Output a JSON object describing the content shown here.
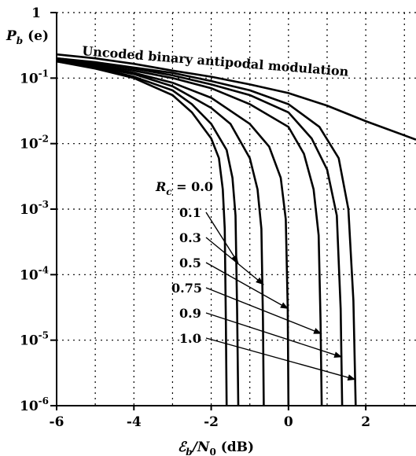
{
  "chart_data": {
    "type": "line",
    "ylabel": "P_b (e)",
    "xlabel": "ℰ_b/N_0 (dB)",
    "xlim": [
      -6,
      3.3
    ],
    "ylim": [
      1e-06,
      1
    ],
    "yscale": "log",
    "grid": true,
    "x_ticks": [
      -6,
      -4,
      -2,
      0,
      2
    ],
    "x_tick_labels": [
      "-6",
      "-4",
      "-2",
      "0",
      "2"
    ],
    "y_ticks": [
      1,
      0.1,
      0.01,
      0.001,
      0.0001,
      1e-05,
      1e-06
    ],
    "y_tick_labels": [
      "1",
      "10-1",
      "10-2",
      "10-3",
      "10-4",
      "10-5",
      "10-6"
    ],
    "annotations": {
      "uncoded": "Uncoded binary antipodal modulation",
      "rc_prefix": "R",
      "rc_sub": "c",
      "rc_value": " = 0.0",
      "rates": [
        "0.1",
        "0.3",
        "0.5",
        "0.75",
        "0.9",
        "1.0"
      ]
    },
    "series": [
      {
        "label_key": "uncoded",
        "x": [
          -6,
          -5,
          -4,
          -3,
          -2,
          -1,
          0,
          1,
          2,
          3.3
        ],
        "y": [
          0.23,
          0.2,
          0.165,
          0.13,
          0.105,
          0.08,
          0.059,
          0.038,
          0.022,
          0.0115
        ]
      },
      {
        "rate": 0.0,
        "x": [
          -6,
          -5,
          -4,
          -3,
          -2.5,
          -2,
          -1.8,
          -1.7,
          -1.65,
          -1.62,
          -1.6
        ],
        "y": [
          0.18,
          0.14,
          0.1,
          0.055,
          0.03,
          0.012,
          0.006,
          0.002,
          0.0005,
          2e-05,
          1e-06
        ]
      },
      {
        "rate": 0.1,
        "x": [
          -6,
          -5,
          -4,
          -3,
          -2.5,
          -2,
          -1.6,
          -1.45,
          -1.37,
          -1.33,
          -1.3
        ],
        "y": [
          0.18,
          0.145,
          0.105,
          0.065,
          0.04,
          0.02,
          0.008,
          0.003,
          0.0008,
          3e-05,
          1e-06
        ]
      },
      {
        "rate": 0.3,
        "x": [
          -6,
          -5,
          -4,
          -3,
          -2,
          -1.5,
          -1.0,
          -0.8,
          -0.7,
          -0.66,
          -0.64
        ],
        "y": [
          0.19,
          0.15,
          0.115,
          0.075,
          0.035,
          0.02,
          0.006,
          0.002,
          0.0005,
          2e-05,
          1e-06
        ]
      },
      {
        "rate": 0.5,
        "x": [
          -6,
          -5,
          -4,
          -3,
          -2,
          -1,
          -0.5,
          -0.2,
          -0.07,
          -0.02,
          0
        ],
        "y": [
          0.19,
          0.155,
          0.12,
          0.085,
          0.05,
          0.02,
          0.009,
          0.003,
          0.0007,
          3e-05,
          1e-06
        ]
      },
      {
        "rate": 0.75,
        "x": [
          -6,
          -5,
          -4,
          -3,
          -2,
          -1,
          0,
          0.4,
          0.65,
          0.78,
          0.83,
          0.86
        ],
        "y": [
          0.19,
          0.16,
          0.13,
          0.1,
          0.07,
          0.04,
          0.018,
          0.007,
          0.002,
          0.0004,
          2e-05,
          1e-06
        ]
      },
      {
        "rate": 0.9,
        "x": [
          -6,
          -5,
          -4,
          -3,
          -2,
          -1,
          0,
          0.6,
          1.0,
          1.25,
          1.35,
          1.39
        ],
        "y": [
          0.2,
          0.17,
          0.14,
          0.11,
          0.08,
          0.055,
          0.03,
          0.012,
          0.004,
          0.0008,
          3e-05,
          1e-06
        ]
      },
      {
        "rate": 1.0,
        "x": [
          -6,
          -5,
          -4,
          -3,
          -2,
          -1,
          0,
          0.8,
          1.3,
          1.55,
          1.68,
          1.74
        ],
        "y": [
          0.2,
          0.175,
          0.145,
          0.12,
          0.09,
          0.065,
          0.04,
          0.018,
          0.006,
          0.001,
          4e-05,
          1e-06
        ]
      }
    ]
  }
}
